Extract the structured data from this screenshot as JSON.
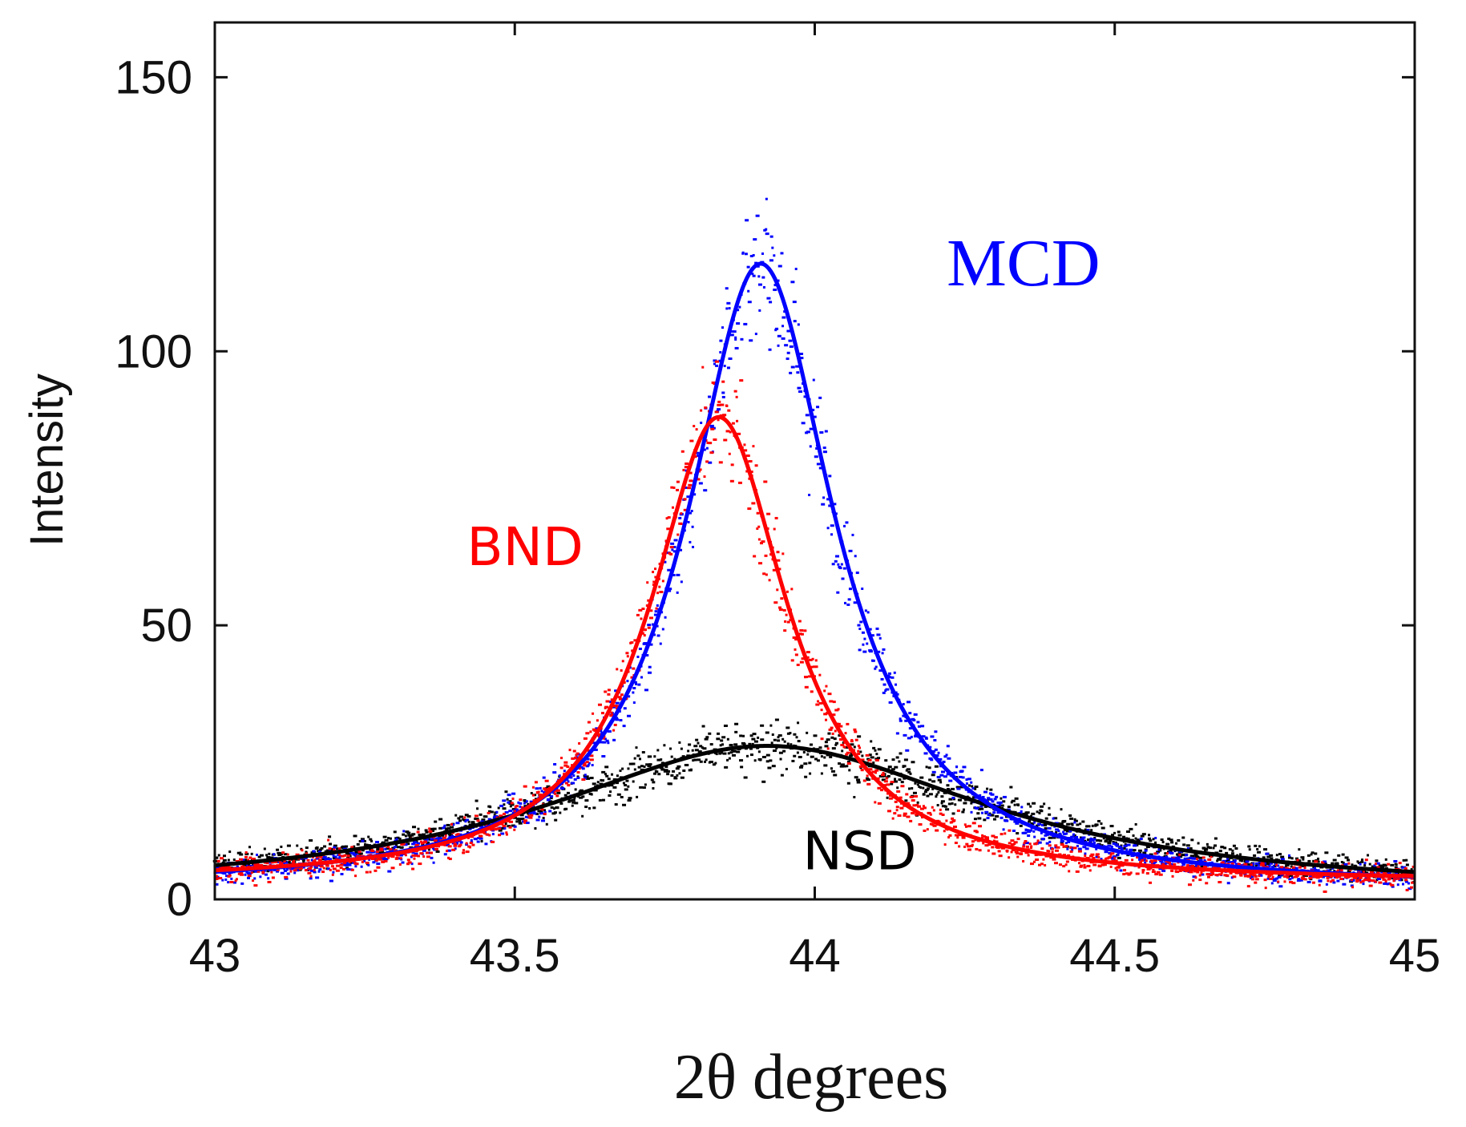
{
  "chart_data": {
    "type": "scatter",
    "title": "",
    "xlabel": "2θ degrees",
    "ylabel": "Intensity",
    "xlim": [
      43,
      45
    ],
    "ylim": [
      0,
      160
    ],
    "x_ticks": [
      43,
      43.5,
      44,
      44.5,
      45
    ],
    "x_tick_labels": [
      "43",
      "43.5",
      "44",
      "44.5",
      "45"
    ],
    "y_ticks": [
      0,
      50,
      100,
      150
    ],
    "y_tick_labels": [
      "0",
      "50",
      "100",
      "150"
    ],
    "grid": false,
    "legend": "inline labels",
    "series": [
      {
        "name": "MCD",
        "color": "#0000ff",
        "fit": {
          "model": "lorentzian",
          "center": 43.91,
          "peak": 116,
          "fwhm": 0.3,
          "baseline": 2
        },
        "label_position": "top-right of peak"
      },
      {
        "name": "BND",
        "color": "#ff0000",
        "fit": {
          "model": "lorentzian",
          "center": 43.84,
          "peak": 88,
          "fwhm": 0.28,
          "baseline": 3
        },
        "label_position": "left of peak"
      },
      {
        "name": "NSD",
        "color": "#000000",
        "fit": {
          "model": "lorentzian",
          "center": 43.92,
          "peak": 28,
          "fwhm": 0.9,
          "baseline": 1
        },
        "label_position": "below curve"
      }
    ],
    "annotations": [
      {
        "text": "MCD",
        "series": "MCD",
        "x": 44.22,
        "y": 112
      },
      {
        "text": "BND",
        "series": "BND",
        "x": 43.42,
        "y": 61
      },
      {
        "text": "NSD",
        "series": "NSD",
        "x": 43.98,
        "y": 5.5
      }
    ]
  }
}
